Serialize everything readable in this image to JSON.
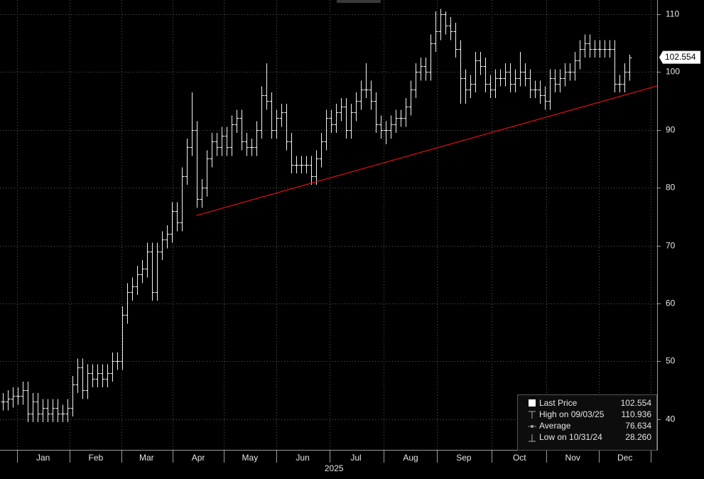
{
  "chart_data": {
    "type": "ohlc",
    "ylim": [
      34.7,
      112.45
    ],
    "yticks": [
      40,
      50,
      60,
      70,
      80,
      90,
      100,
      110
    ],
    "xlim": [
      -0.57,
      131.57
    ],
    "xticks": [
      {
        "value": 8.1,
        "label": "Jan"
      },
      {
        "value": 18.7,
        "label": "Feb"
      },
      {
        "value": 28.9,
        "label": "Mar"
      },
      {
        "value": 39.3,
        "label": "Apr"
      },
      {
        "value": 49.7,
        "label": "May"
      },
      {
        "value": 60.3,
        "label": "Jun"
      },
      {
        "value": 71,
        "label": "Jul"
      },
      {
        "value": 82,
        "label": "Aug"
      },
      {
        "value": 92.7,
        "label": "Sep"
      },
      {
        "value": 103.9,
        "label": "Oct"
      },
      {
        "value": 114.6,
        "label": "Nov"
      },
      {
        "value": 125.1,
        "label": "Dec"
      }
    ],
    "xlabel": "2025",
    "grid": true,
    "series": [
      {
        "name": "Last Price",
        "color": "#ffffff",
        "open": [
          43,
          43,
          43.5,
          44,
          44,
          45,
          41,
          43,
          41,
          42,
          41,
          42,
          41,
          41,
          42,
          46,
          49,
          45,
          48,
          47,
          48,
          47,
          48,
          50,
          50,
          58,
          62,
          63,
          65,
          66,
          69,
          62,
          69,
          71,
          72,
          76,
          74,
          82,
          87,
          90,
          78,
          80,
          85,
          88,
          87,
          89,
          87,
          91,
          92,
          88,
          87,
          87,
          90,
          96,
          95,
          90,
          92,
          93,
          88,
          84,
          84,
          84,
          84,
          82,
          85,
          88,
          92,
          91,
          93,
          94,
          90,
          93,
          95,
          97,
          97,
          95,
          91,
          90,
          90,
          91,
          92,
          92,
          94,
          97,
          100,
          101,
          100,
          105,
          107,
          110,
          108,
          107,
          104,
          99,
          97,
          98,
          102,
          101,
          98,
          97,
          99,
          99,
          100,
          98,
          99,
          100,
          99,
          97,
          97,
          96,
          95,
          99,
          98,
          99,
          100,
          100,
          102,
          104,
          105,
          104,
          104,
          104,
          104,
          104,
          98,
          98,
          100
        ],
        "high": [
          44.5,
          45,
          45.5,
          45.5,
          46.5,
          46.5,
          44.5,
          44.5,
          43.5,
          43.5,
          43.5,
          43.5,
          42.5,
          43.5,
          47.5,
          50.5,
          50.5,
          49.5,
          49.5,
          49.5,
          49.5,
          49.5,
          51.5,
          51.5,
          59.5,
          63.5,
          64.5,
          66.5,
          67.5,
          70.5,
          70.5,
          70.5,
          72.5,
          73.5,
          77.5,
          77.5,
          83.5,
          88.5,
          96.5,
          91.5,
          81.5,
          86.5,
          89.5,
          89.5,
          90.5,
          90.5,
          92.5,
          93.5,
          93.5,
          89.5,
          88.5,
          91.5,
          97.5,
          101.5,
          96.5,
          93.5,
          94.5,
          94.5,
          89.5,
          85.5,
          85.5,
          85.5,
          85.5,
          86.5,
          89.5,
          93.5,
          93.5,
          94.5,
          95.5,
          95.5,
          94.5,
          96.5,
          98.5,
          101.5,
          98.5,
          96.5,
          92.5,
          91.5,
          92.5,
          93.5,
          93.5,
          95.5,
          98.5,
          101.5,
          102.5,
          102.5,
          106.5,
          110.5,
          110.936,
          110.5,
          109.5,
          108.5,
          105.5,
          100.5,
          99.5,
          103.5,
          103.5,
          102.5,
          99.5,
          100.5,
          100.5,
          101.5,
          101.5,
          100.5,
          103.5,
          101.5,
          100.5,
          98.5,
          98.5,
          97.5,
          100.5,
          100.5,
          100.5,
          101.5,
          101.5,
          103.5,
          105.5,
          106.5,
          106.5,
          105.5,
          105.5,
          105.5,
          105.5,
          105.5,
          99.5,
          101.5,
          103
        ],
        "low": [
          41.5,
          41.5,
          42,
          42.5,
          42.5,
          39.5,
          39.5,
          39.5,
          39.5,
          39.5,
          39.5,
          39.5,
          39.5,
          39.5,
          40.5,
          44.5,
          43.5,
          43.5,
          45.5,
          45.5,
          45.5,
          45.5,
          46.5,
          48.5,
          48.5,
          56.5,
          60.5,
          61.5,
          63.5,
          64.5,
          60.5,
          60.5,
          67.5,
          69.5,
          70.5,
          72.5,
          72.5,
          80.5,
          85.5,
          76.5,
          76.5,
          78.5,
          83.5,
          85.5,
          85.5,
          85.5,
          85.5,
          89.5,
          86.5,
          85.5,
          85.5,
          85.5,
          88.5,
          93.5,
          88.5,
          88.5,
          90.5,
          86.5,
          82.5,
          82.5,
          82.5,
          82.5,
          80.5,
          80.5,
          83.5,
          86.5,
          89.5,
          89.5,
          91.5,
          88.5,
          88.5,
          91.5,
          93.5,
          95.5,
          93.5,
          89.5,
          88.5,
          87.5,
          88.5,
          89.5,
          90.5,
          90.5,
          92.5,
          95.5,
          98.5,
          98.5,
          98.5,
          103.5,
          105.5,
          106.5,
          105.5,
          102.5,
          94.5,
          94.5,
          95.5,
          96.5,
          99.5,
          96.5,
          95.5,
          95.5,
          97.5,
          97.5,
          96.5,
          96.5,
          97.5,
          97.5,
          95.5,
          95.5,
          94.5,
          93.5,
          93.5,
          96.5,
          96.5,
          97.5,
          98.5,
          98.5,
          100.5,
          102.5,
          102.5,
          102.5,
          102.5,
          102.5,
          102.5,
          96.5,
          96.5,
          96.5,
          98.5
        ],
        "close": [
          43,
          43.5,
          44,
          44,
          45,
          41,
          43,
          41,
          42,
          41,
          42,
          41,
          41,
          42,
          46,
          49,
          45,
          48,
          47,
          48,
          47,
          48,
          50,
          50,
          58,
          62,
          63,
          65,
          66,
          69,
          62,
          69,
          71,
          72,
          76,
          74,
          82,
          87,
          90,
          78,
          80,
          85,
          88,
          87,
          89,
          87,
          91,
          92,
          88,
          87,
          87,
          90,
          96,
          95,
          90,
          92,
          93,
          88,
          84,
          84,
          84,
          84,
          82,
          85,
          88,
          92,
          91,
          93,
          94,
          90,
          93,
          95,
          97,
          97,
          95,
          91,
          90,
          90,
          91,
          92,
          92,
          94,
          97,
          100,
          101,
          100,
          105,
          107,
          110,
          108,
          107,
          104,
          99,
          97,
          98,
          102,
          101,
          98,
          97,
          99,
          99,
          100,
          98,
          99,
          100,
          99,
          97,
          97,
          96,
          95,
          99,
          98,
          99,
          100,
          100,
          102,
          104,
          105,
          104,
          104,
          104,
          104,
          104,
          98,
          98,
          100,
          102.554
        ]
      }
    ],
    "trendline": {
      "x": [
        38.9,
        131.57
      ],
      "y": [
        75.2,
        97.6
      ],
      "color": "#e01010"
    },
    "legend": {
      "labels": [
        "Last Price",
        "High on 09/03/25",
        "Average",
        "Low on 10/31/24"
      ],
      "values": [
        102.554,
        110.936,
        76.634,
        28.26
      ],
      "value_labels": [
        "102.554",
        "110.936",
        "76.634",
        "28.260"
      ]
    }
  }
}
